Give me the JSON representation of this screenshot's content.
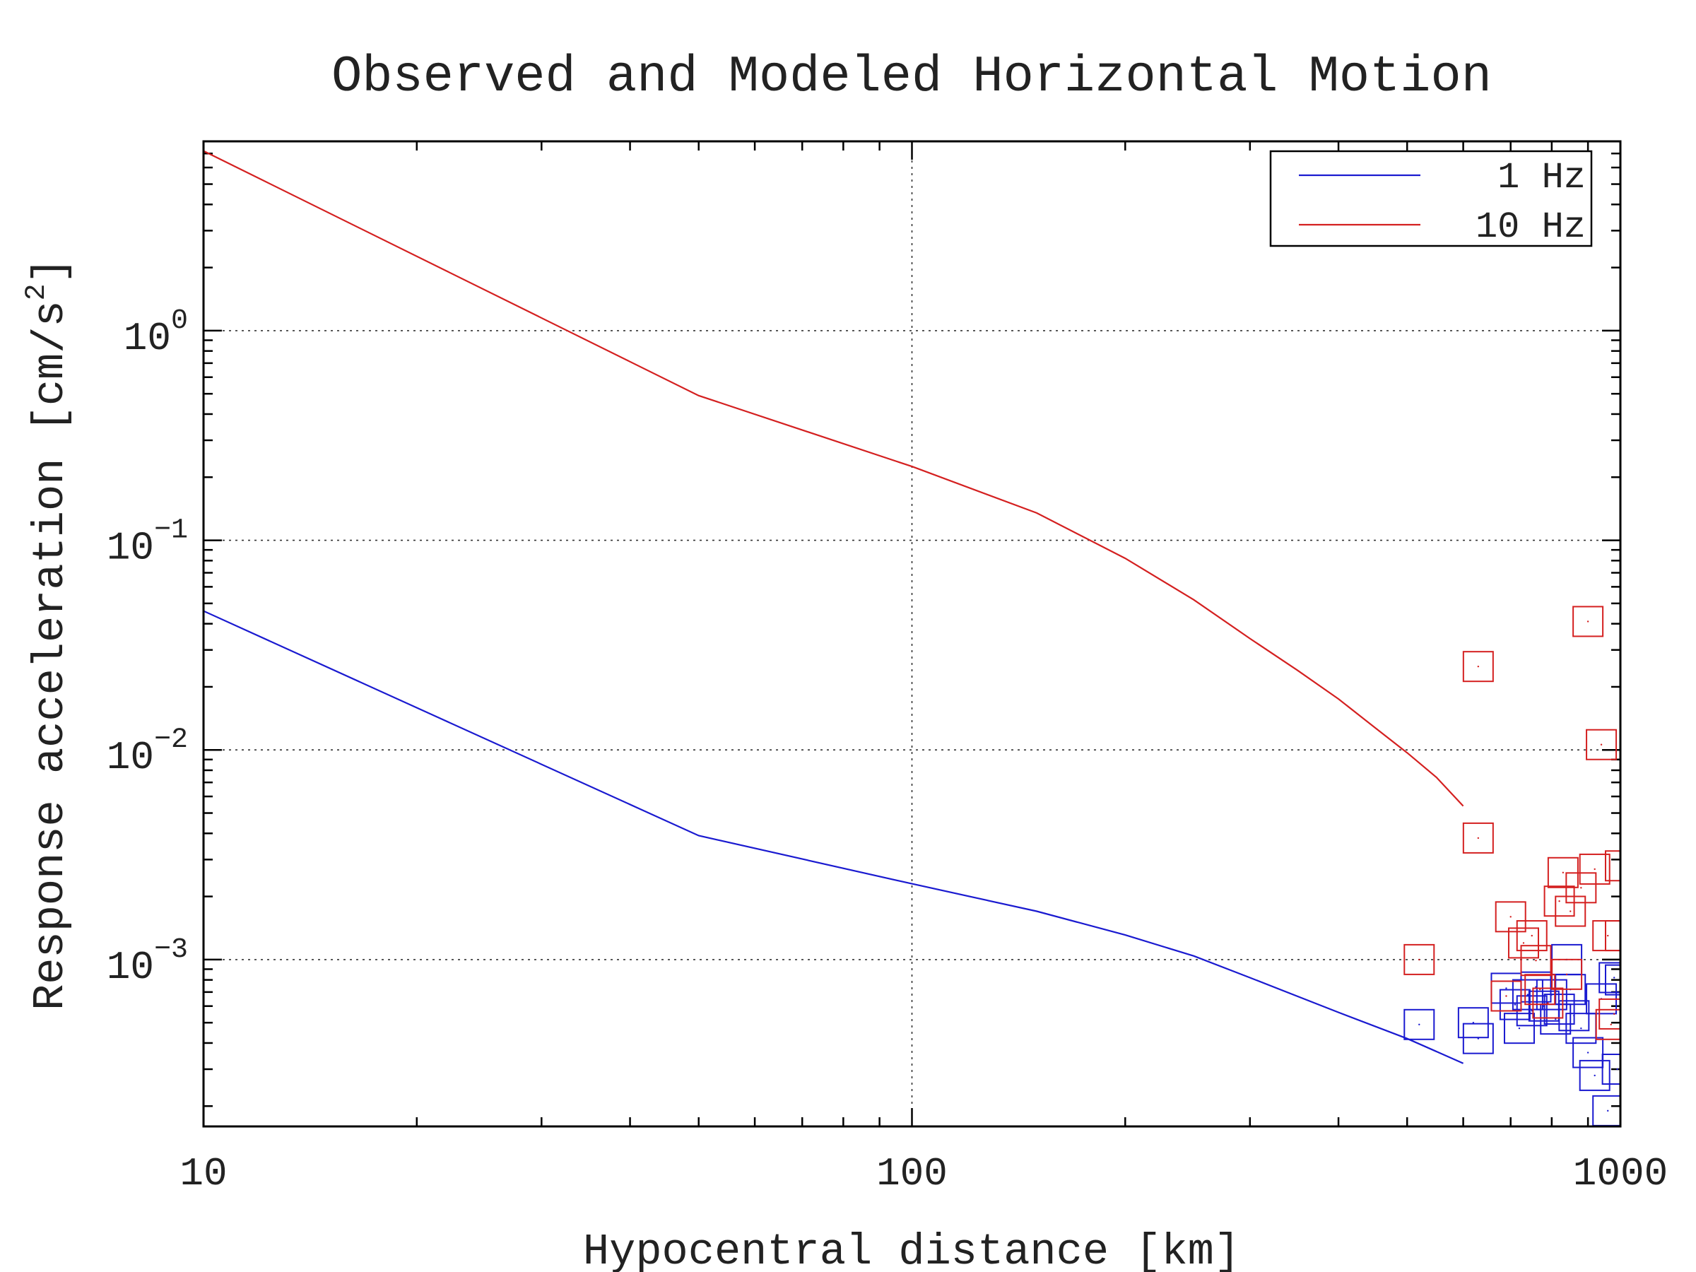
{
  "chart_data": {
    "type": "line",
    "title": "Observed and Modeled Horizontal Motion",
    "xlabel": "Hypocentral distance [km]",
    "ylabel": "Response acceleration [cm/s",
    "ylabel_superscript": "2",
    "ylabel_suffix": "]",
    "x_scale": "log",
    "y_scale": "log",
    "xlim": [
      10,
      1000
    ],
    "ylim": [
      0.00016,
      8.0
    ],
    "x_ticks": [
      {
        "value": 10,
        "label": "10"
      },
      {
        "value": 100,
        "label": "100"
      },
      {
        "value": 1000,
        "label": "1000"
      }
    ],
    "y_ticks": [
      {
        "value": 1,
        "base": "10",
        "exp": "0"
      },
      {
        "value": 0.1,
        "base": "10",
        "exp": "−1"
      },
      {
        "value": 0.01,
        "base": "10",
        "exp": "−2"
      },
      {
        "value": 0.001,
        "base": "10",
        "exp": "−3"
      }
    ],
    "grid": true,
    "legend": {
      "placement": "top-right",
      "entries": [
        {
          "label": "1 Hz",
          "color": "#1a1ad0"
        },
        {
          "label": "10 Hz",
          "color": "#d42020"
        }
      ]
    },
    "series": [
      {
        "name": "1 Hz",
        "kind": "line",
        "color": "#1a1ad0",
        "x": [
          10,
          50,
          100,
          150,
          200,
          250,
          300,
          400,
          500,
          600
        ],
        "y": [
          0.046,
          0.0039,
          0.0023,
          0.0017,
          0.00131,
          0.00104,
          0.00082,
          0.00056,
          0.00042,
          0.00032
        ]
      },
      {
        "name": "10 Hz",
        "kind": "line",
        "color": "#d42020",
        "x": [
          10,
          50,
          100,
          150,
          200,
          250,
          300,
          350,
          400,
          450,
          500,
          550,
          600
        ],
        "y": [
          7.2,
          0.49,
          0.225,
          0.135,
          0.082,
          0.052,
          0.034,
          0.024,
          0.0175,
          0.0128,
          0.0097,
          0.0074,
          0.0054
        ]
      },
      {
        "name": "1 Hz observed",
        "kind": "scatter",
        "marker": "square",
        "color": "#1a1ad0",
        "points": [
          [
            520,
            0.00049
          ],
          [
            620,
            0.0005
          ],
          [
            630,
            0.00042
          ],
          [
            690,
            0.00073
          ],
          [
            710,
            0.00061
          ],
          [
            720,
            0.00047
          ],
          [
            740,
            0.00068
          ],
          [
            750,
            0.00057
          ],
          [
            760,
            0.00074
          ],
          [
            780,
            0.0006
          ],
          [
            800,
            0.00068
          ],
          [
            810,
            0.00052
          ],
          [
            820,
            0.00058
          ],
          [
            840,
            0.001
          ],
          [
            850,
            0.00072
          ],
          [
            860,
            0.00054
          ],
          [
            880,
            0.00047
          ],
          [
            900,
            0.00036
          ],
          [
            920,
            0.00028
          ],
          [
            940,
            0.00065
          ],
          [
            960,
            0.00019
          ],
          [
            980,
            0.00082
          ],
          [
            990,
            0.0003
          ],
          [
            1000,
            0.0008
          ]
        ]
      },
      {
        "name": "10 Hz observed",
        "kind": "scatter",
        "marker": "square",
        "color": "#d42020",
        "points": [
          [
            520,
            0.001
          ],
          [
            630,
            0.025
          ],
          [
            630,
            0.0038
          ],
          [
            690,
            0.00067
          ],
          [
            700,
            0.0016
          ],
          [
            730,
            0.0012
          ],
          [
            750,
            0.0013
          ],
          [
            760,
            0.00099
          ],
          [
            770,
            0.00072
          ],
          [
            790,
            0.00062
          ],
          [
            820,
            0.0019
          ],
          [
            830,
            0.0026
          ],
          [
            840,
            0.00085
          ],
          [
            850,
            0.0017
          ],
          [
            880,
            0.0022
          ],
          [
            900,
            0.041
          ],
          [
            920,
            0.0027
          ],
          [
            940,
            0.0106
          ],
          [
            960,
            0.0013
          ],
          [
            980,
            0.00055
          ],
          [
            1000,
            0.0028
          ],
          [
            1000,
            0.0013
          ],
          [
            970,
            0.00049
          ]
        ]
      }
    ]
  }
}
